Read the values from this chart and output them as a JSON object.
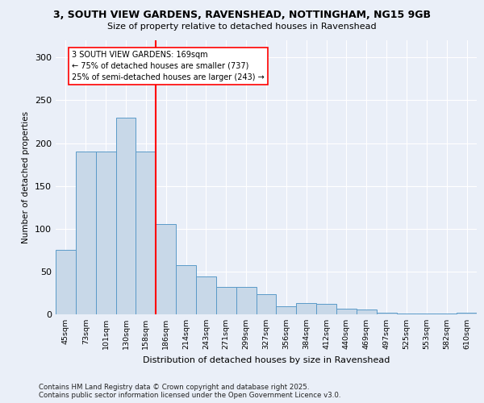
{
  "title_line1": "3, SOUTH VIEW GARDENS, RAVENSHEAD, NOTTINGHAM, NG15 9GB",
  "title_line2": "Size of property relative to detached houses in Ravenshead",
  "xlabel": "Distribution of detached houses by size in Ravenshead",
  "ylabel": "Number of detached properties",
  "categories": [
    "45sqm",
    "73sqm",
    "101sqm",
    "130sqm",
    "158sqm",
    "186sqm",
    "214sqm",
    "243sqm",
    "271sqm",
    "299sqm",
    "327sqm",
    "356sqm",
    "384sqm",
    "412sqm",
    "440sqm",
    "469sqm",
    "497sqm",
    "525sqm",
    "553sqm",
    "582sqm",
    "610sqm"
  ],
  "values": [
    75,
    190,
    190,
    230,
    190,
    105,
    57,
    44,
    32,
    32,
    24,
    9,
    13,
    12,
    7,
    6,
    2,
    1,
    1,
    1,
    2
  ],
  "bar_color": "#c8d8e8",
  "bar_edge_color": "#5a9ac8",
  "highlight_index": 5,
  "annotation_text": "3 SOUTH VIEW GARDENS: 169sqm\n← 75% of detached houses are smaller (737)\n25% of semi-detached houses are larger (243) →",
  "annotation_box_color": "white",
  "annotation_box_edge": "red",
  "ylim": [
    0,
    320
  ],
  "yticks": [
    0,
    50,
    100,
    150,
    200,
    250,
    300
  ],
  "footer": "Contains HM Land Registry data © Crown copyright and database right 2025.\nContains public sector information licensed under the Open Government Licence v3.0.",
  "bg_color": "#eaeff8",
  "plot_bg_color": "#eaeff8"
}
